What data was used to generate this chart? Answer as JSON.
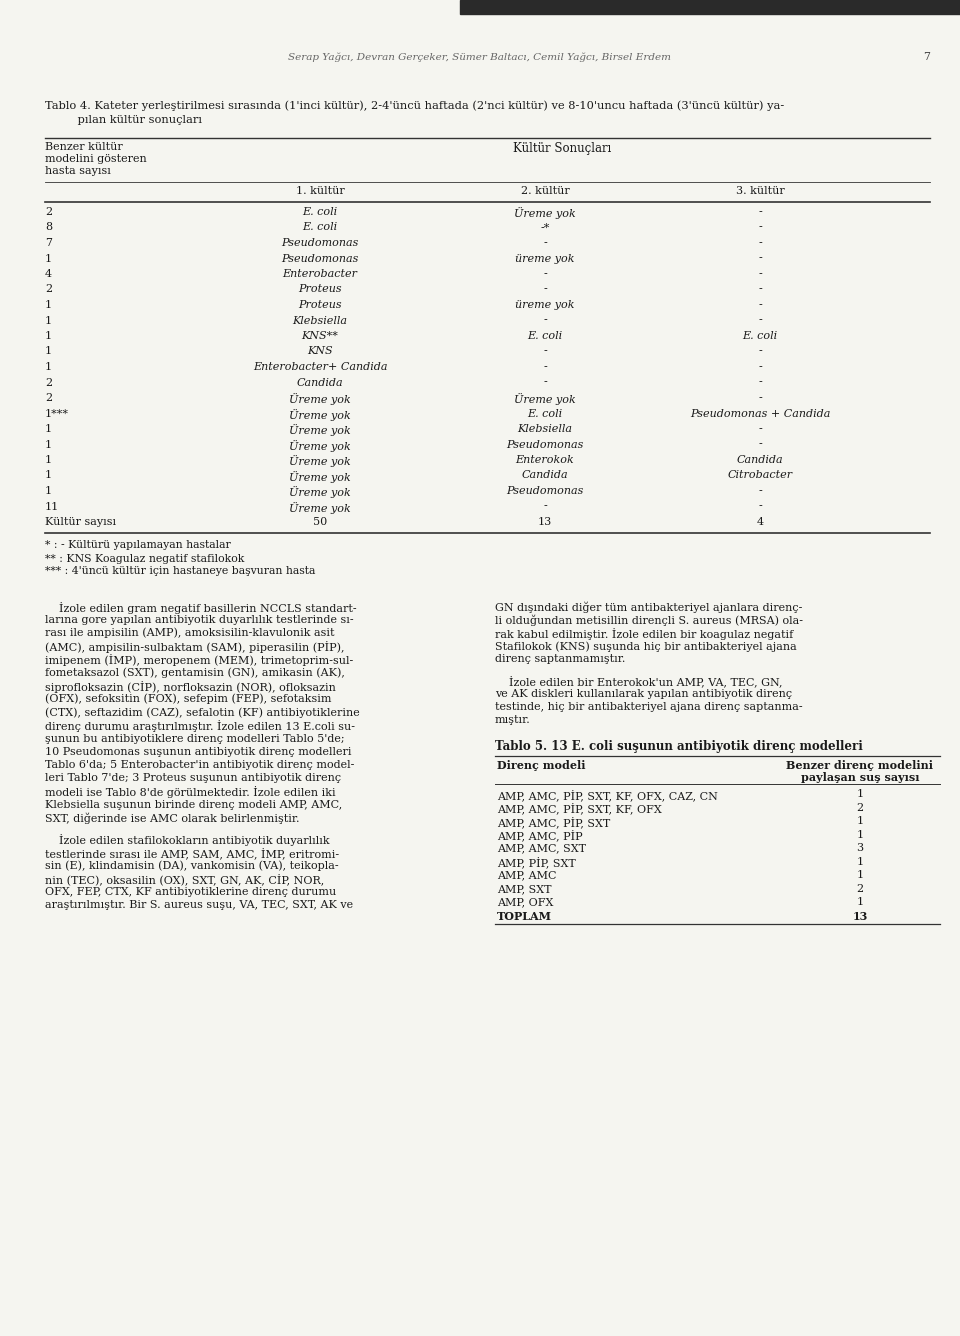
{
  "page_header": "Serap Yağcı, Devran Gerçeker, Sümer Baltacı, Cemil Yağcı, Birsel Erdem",
  "page_number": "7",
  "table_caption_line1": "Tablo 4. Kateter yerleştirilmesi sırasında (1'inci kültür), 2-4'üncü haftada (2'nci kültür) ve 8-10'uncu haftada (3'üncü kültür) ya-",
  "table_caption_line2": "         pılan kültür sonuçları",
  "rows": [
    [
      "2",
      "E. coli",
      "Üreme yok",
      "-"
    ],
    [
      "8",
      "E. coli",
      "-*",
      "-"
    ],
    [
      "7",
      "Pseudomonas",
      "-",
      "-"
    ],
    [
      "1",
      "Pseudomonas",
      "üreme yok",
      "-"
    ],
    [
      "4",
      "Enterobacter",
      "-",
      "-"
    ],
    [
      "2",
      "Proteus",
      "-",
      "-"
    ],
    [
      "1",
      "Proteus",
      "üreme yok",
      "-"
    ],
    [
      "1",
      "Klebsiella",
      "-",
      "-"
    ],
    [
      "1",
      "KNS**",
      "E. coli",
      "E. coli"
    ],
    [
      "1",
      "KNS",
      "-",
      "-"
    ],
    [
      "1",
      "Enterobacter+ Candida",
      "-",
      "-"
    ],
    [
      "2",
      "Candida",
      "-",
      "-"
    ],
    [
      "2",
      "Üreme yok",
      "Üreme yok",
      "-"
    ],
    [
      "1***",
      "Üreme yok",
      "E. coli",
      "Pseudomonas + Candida"
    ],
    [
      "1",
      "Üreme yok",
      "Klebsiella",
      "-"
    ],
    [
      "1",
      "Üreme yok",
      "Pseudomonas",
      "-"
    ],
    [
      "1",
      "Üreme yok",
      "Enterokok",
      "Candida"
    ],
    [
      "1",
      "Üreme yok",
      "Candida",
      "Citrobacter"
    ],
    [
      "1",
      "Üreme yok",
      "Pseudomonas",
      "-"
    ],
    [
      "11",
      "Üreme yok",
      "-",
      "-"
    ],
    [
      "Kültür sayısı",
      "50",
      "13",
      "4"
    ]
  ],
  "footnotes": [
    "* : - Kültürü yapılamayan hastalar",
    "** : KNS Koagulaz negatif stafilokok",
    "*** : 4'üncü kültür için hastaneye başvuran hasta"
  ],
  "body_left_lines": [
    "    İzole edilen gram negatif basillerin NCCLS standart-",
    "larına gore yapılan antibiyotik duyarlılık testlerinde sı-",
    "rası ile ampisilin (AMP), amoksisilin-klavulonik asit",
    "(AMC), ampisilin-sulbaktam (SAM), piperasilin (PİP),",
    "imipenem (İMP), meropenem (MEM), trimetoprim-sul-",
    "fometaksazol (SXT), gentamisin (GN), amikasin (AK),",
    "siprofloksazin (CİP), norfloksazin (NOR), ofloksazin",
    "(OFX), sefoksitin (FOX), sefepim (FEP), sefotaksim",
    "(CTX), seftazidim (CAZ), sefalotin (KF) antibiyotiklerine",
    "direnç durumu araştırılmıştır. İzole edilen 13 E.coli su-",
    "şunun bu antibiyotiklere direnç modelleri Tablo 5'de;",
    "10 Pseudomonas suşunun antibiyotik direnç modelleri",
    "Tablo 6'da; 5 Enterobacter'in antibiyotik direnç model-",
    "leri Tablo 7'de; 3 Proteus suşunun antibiyotik direnç",
    "modeli ise Tablo 8'de görülmektedir. İzole edilen iki",
    "Klebsiella suşunun birinde direnç modeli AMP, AMC,",
    "SXT, diğerinde ise AMC olarak belirlenmiştir."
  ],
  "body_left2_lines": [
    "    İzole edilen stafilokokların antibiyotik duyarlılık",
    "testlerinde sırası ile AMP, SAM, AMC, İMP, eritromi-",
    "sin (E), klindamisin (DA), vankomisin (VA), teikopla-",
    "nin (TEC), oksasilin (OX), SXT, GN, AK, CİP, NOR,",
    "OFX, FEP, CTX, KF antibiyotiklerine direnç durumu",
    "araştırılmıştır. Bir S. aureus suşu, VA, TEC, SXT, AK ve"
  ],
  "body_right_lines": [
    "GN dışındaki diğer tüm antibakteriyel ajanlara direnç-",
    "li olduğundan metisillin dirençli S. aureus (MRSA) ola-",
    "rak kabul edilmiştir. İzole edilen bir koagulaz negatif",
    "Stafilokok (KNS) suşunda hiç bir antibakteriyel ajana",
    "direnç saptanmamıştır."
  ],
  "body_right2_lines": [
    "    İzole edilen bir Enterokok'un AMP, VA, TEC, GN,",
    "ve AK diskleri kullanılarak yapılan antibiyotik direnç",
    "testinde, hiç bir antibakteriyel ajana direnç saptanma-",
    "mıştır."
  ],
  "table2_caption": "Tablo 5. 13 E. coli suşunun antibiyotik direnç modelleri",
  "table2_col1_header": "Direnç modeli",
  "table2_col2_header": "Benzer direnç modelini",
  "table2_col2_header2": "paylaşan suş sayısı",
  "table2_rows": [
    [
      "AMP, AMC, PİP, SXT, KF, OFX, CAZ, CN",
      "1"
    ],
    [
      "AMP, AMC, PİP, SXT, KF, OFX",
      "2"
    ],
    [
      "AMP, AMC, PİP, SXT",
      "1"
    ],
    [
      "AMP, AMC, PİP",
      "1"
    ],
    [
      "AMP, AMC, SXT",
      "3"
    ],
    [
      "AMP, PİP, SXT",
      "1"
    ],
    [
      "AMP, AMC",
      "1"
    ],
    [
      "AMP, SXT",
      "2"
    ],
    [
      "AMP, OFX",
      "1"
    ],
    [
      "TOPLAM",
      "13"
    ]
  ],
  "bg_color": "#f5f5f0",
  "text_color": "#1a1a1a",
  "line_color": "#333333",
  "header_color": "#555555"
}
